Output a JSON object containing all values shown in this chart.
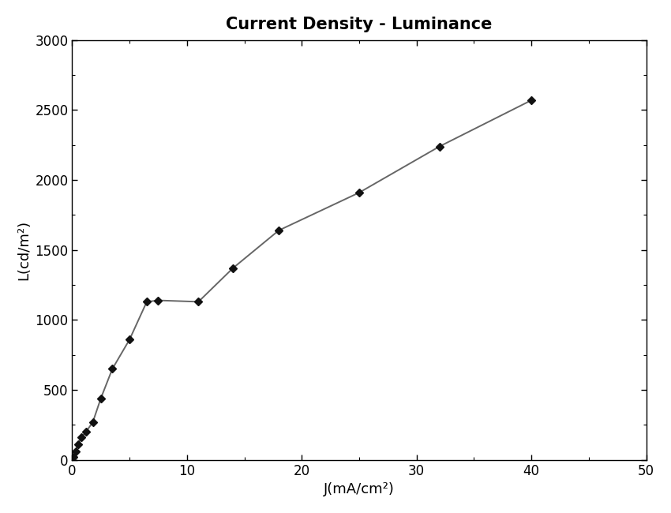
{
  "title": "Current Density - Luminance",
  "xlabel": "J(mA/cm²)",
  "ylabel": "L(cd/m²)",
  "x_data": [
    0.0,
    0.1,
    0.3,
    0.5,
    0.8,
    1.2,
    1.8,
    2.5,
    3.5,
    5.0,
    6.5,
    7.5,
    11.0,
    14.0,
    18.0,
    25.0,
    32.0,
    40.0
  ],
  "y_data": [
    0,
    20,
    60,
    110,
    160,
    200,
    270,
    440,
    650,
    860,
    1130,
    1140,
    1130,
    1370,
    1640,
    1910,
    2240,
    2570
  ],
  "xlim": [
    0,
    50
  ],
  "ylim": [
    0,
    3000
  ],
  "xticks": [
    0,
    10,
    20,
    30,
    40,
    50
  ],
  "yticks": [
    0,
    500,
    1000,
    1500,
    2000,
    2500,
    3000
  ],
  "line_color": "#666666",
  "marker": "D",
  "marker_color": "#111111",
  "marker_size": 5,
  "line_width": 1.4,
  "title_fontsize": 15,
  "label_fontsize": 13,
  "tick_fontsize": 12,
  "bg_color": "#ffffff",
  "spine_color": "#000000"
}
